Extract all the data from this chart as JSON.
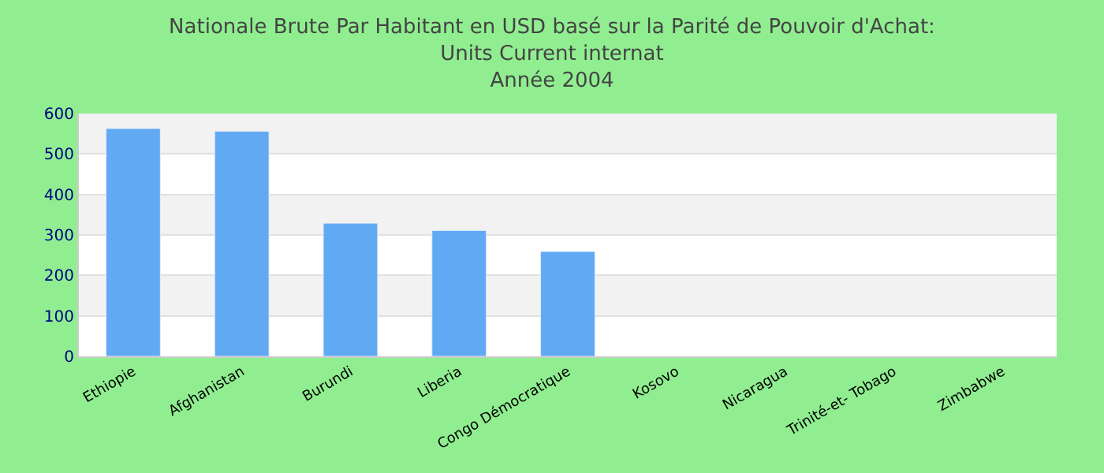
{
  "chart_data": {
    "type": "bar",
    "title": "Nationale Brute Par Habitant en USD basé sur la Parité de Pouvoir d'Achat: Units Current internat",
    "subtitle": "Année 2004",
    "categories": [
      "Ethiopie",
      "Afghanistan",
      "Burundi",
      "Liberia",
      "Congo Démocratique",
      "Kosovo",
      "Nicaragua",
      "Trinité-et- Tobago",
      "Zimbabwe"
    ],
    "values": [
      563,
      556,
      329,
      311,
      259,
      null,
      null,
      null,
      null
    ],
    "color": "#62a9f4",
    "ylim": [
      0,
      600
    ],
    "yticks": [
      0,
      100,
      200,
      300,
      400,
      500,
      600
    ],
    "grid": "y",
    "legend": false
  }
}
